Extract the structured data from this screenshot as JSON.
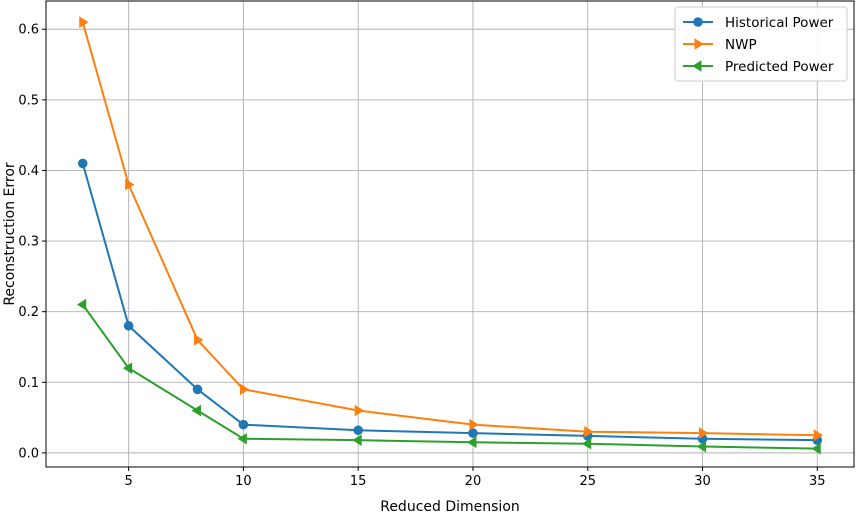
{
  "chart_data": {
    "type": "line",
    "xlabel": "Reduced Dimension",
    "ylabel": "Reconstruction Error",
    "xlim": [
      1.4,
      36.6
    ],
    "ylim": [
      -0.02,
      0.64
    ],
    "xticks": [
      5,
      10,
      15,
      20,
      25,
      30,
      35
    ],
    "yticks": [
      0.0,
      0.1,
      0.2,
      0.3,
      0.4,
      0.5,
      0.6
    ],
    "grid": true,
    "legend_position": "top-right",
    "x": [
      3,
      5,
      8,
      10,
      15,
      20,
      25,
      30,
      35
    ],
    "series": [
      {
        "name": "Historical Power",
        "color": "#1f77b4",
        "marker": "circle",
        "values": [
          0.41,
          0.18,
          0.09,
          0.04,
          0.032,
          0.028,
          0.024,
          0.02,
          0.018
        ]
      },
      {
        "name": "NWP",
        "color": "#ff7f0e",
        "marker": "triangle-right",
        "values": [
          0.61,
          0.38,
          0.16,
          0.09,
          0.06,
          0.04,
          0.03,
          0.028,
          0.025
        ]
      },
      {
        "name": "Predicted Power",
        "color": "#2ca02c",
        "marker": "triangle-left",
        "values": [
          0.21,
          0.12,
          0.06,
          0.02,
          0.018,
          0.015,
          0.013,
          0.009,
          0.006
        ]
      }
    ]
  }
}
